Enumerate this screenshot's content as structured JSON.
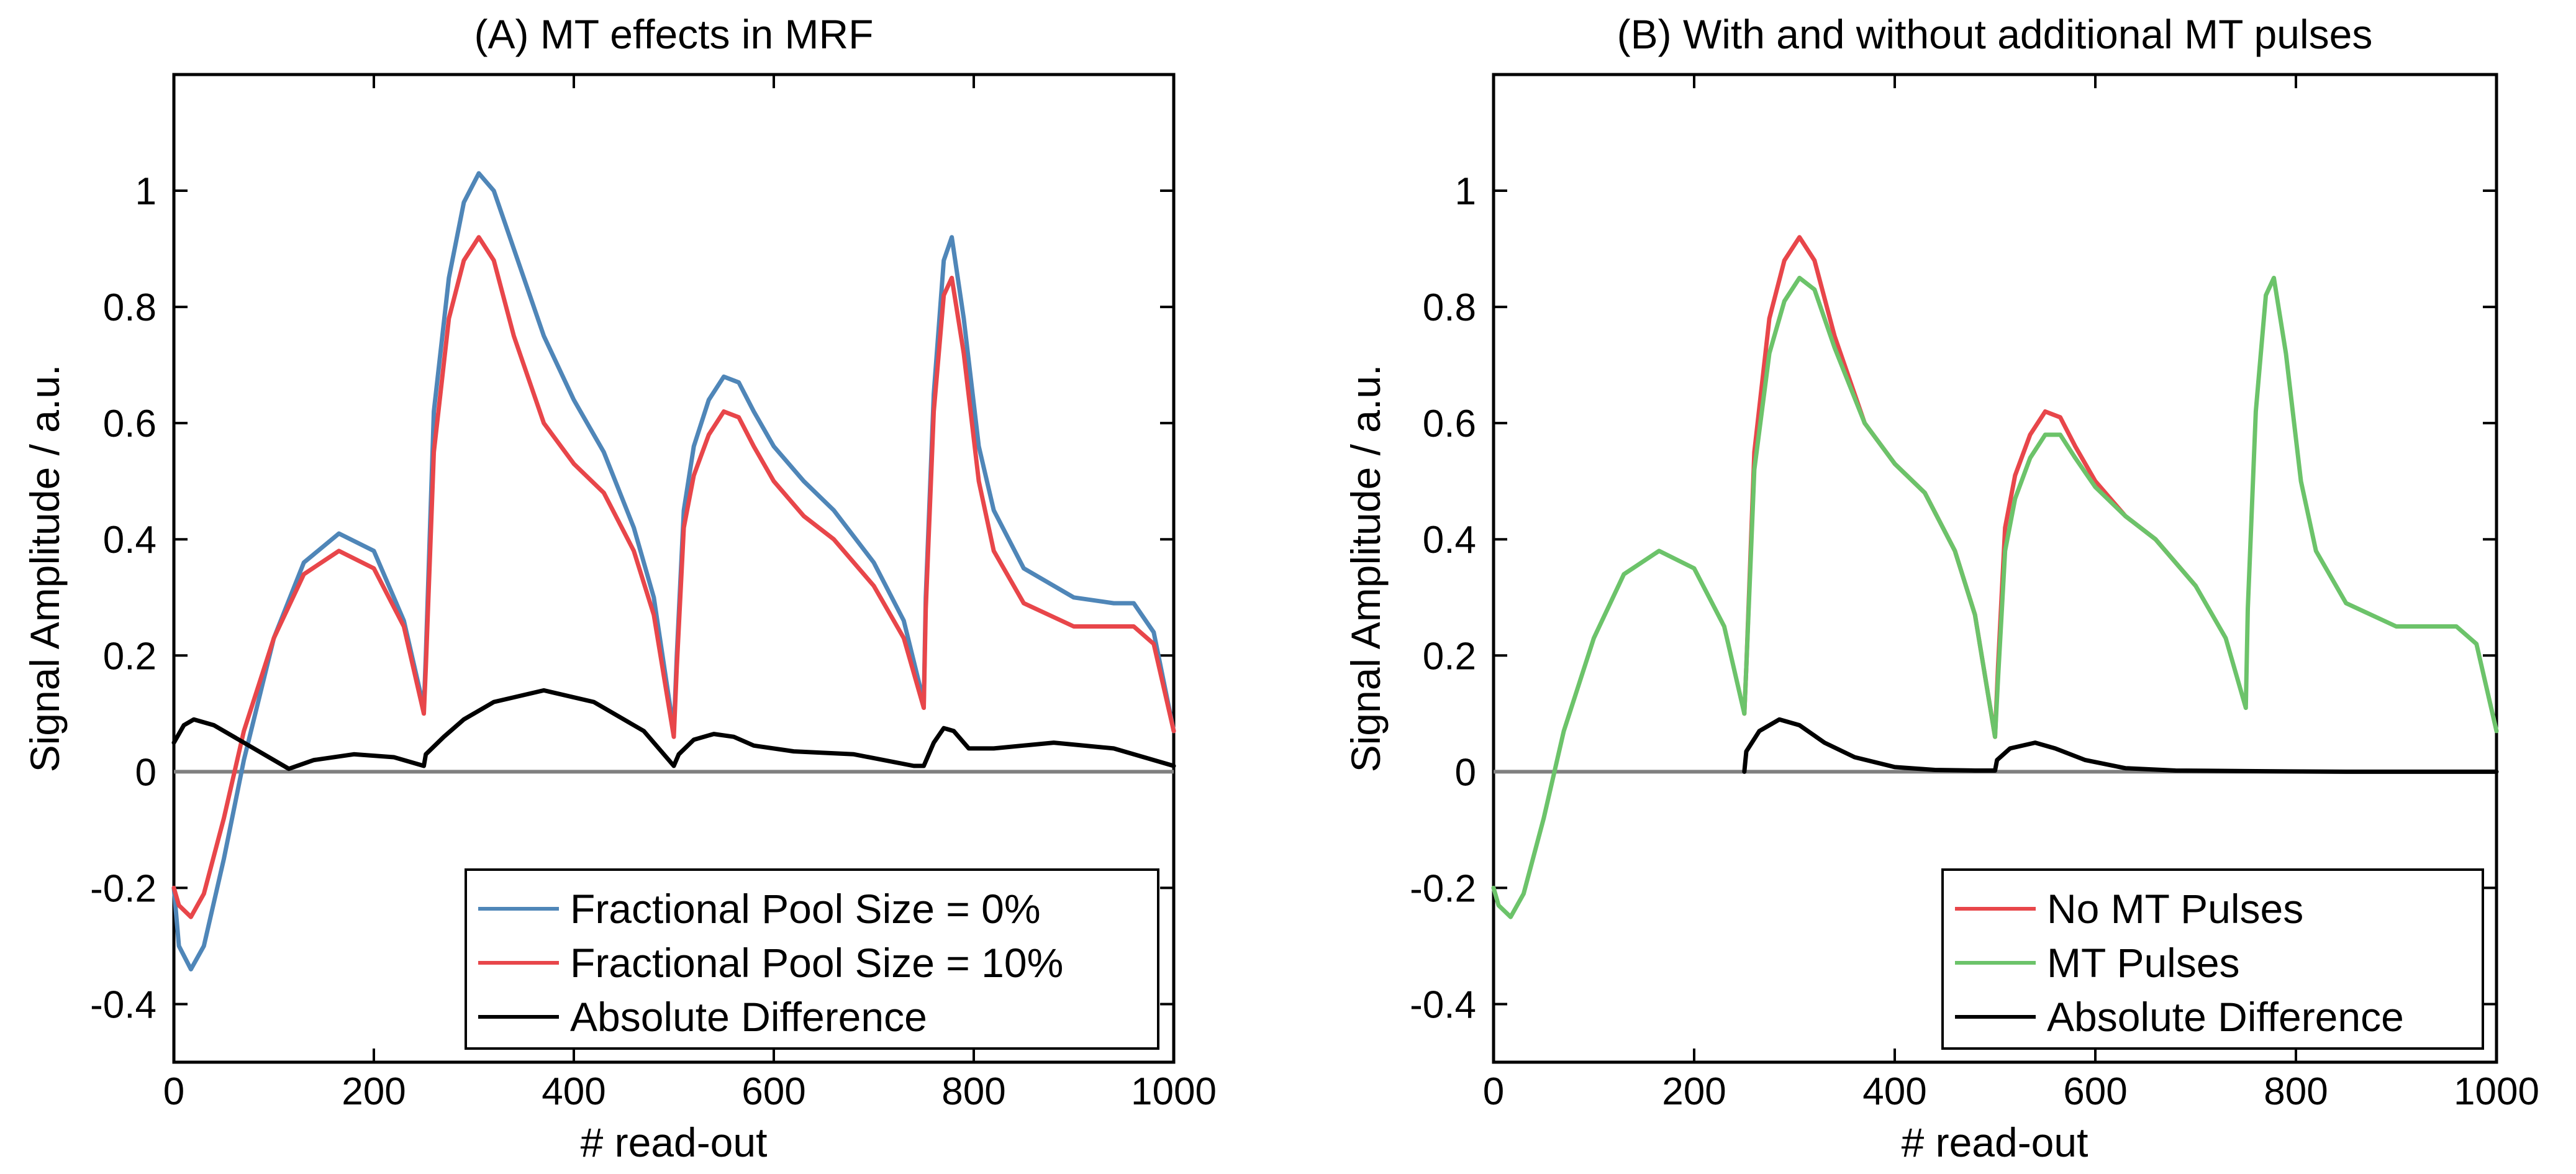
{
  "chart_data": [
    {
      "type": "line",
      "title": "(A) MT effects in MRF",
      "xlabel": "# read-out",
      "ylabel": "Signal Amplitude / a.u.",
      "xlim": [
        0,
        1000
      ],
      "ylim": [
        -0.5,
        1.2
      ],
      "xticks": [
        0,
        200,
        400,
        600,
        800,
        1000
      ],
      "yticks": [
        -0.4,
        -0.2,
        0,
        0.2,
        0.4,
        0.6,
        0.8,
        1
      ],
      "ytick_labels": [
        "-0.4",
        "-0.2",
        "0",
        "0.2",
        "0.4",
        "0.6",
        "0.8",
        "1"
      ],
      "grid": false,
      "zero_line": true,
      "legend": {
        "position": "bottom-right",
        "entries": [
          "Fractional Pool Size = 0%",
          "Fractional Pool Size = 10%",
          "Absolute Difference"
        ]
      },
      "series": [
        {
          "name": "Fractional Pool Size = 0%",
          "color": "#4f86b8",
          "x": [
            0,
            5,
            17,
            30,
            50,
            70,
            100,
            130,
            165,
            200,
            230,
            250,
            252,
            260,
            275,
            290,
            305,
            320,
            340,
            370,
            400,
            430,
            460,
            480,
            500,
            503,
            510,
            520,
            535,
            550,
            565,
            580,
            600,
            630,
            660,
            700,
            730,
            750,
            752,
            760,
            770,
            778,
            790,
            805,
            820,
            850,
            900,
            940,
            960,
            980,
            1000
          ],
          "y": [
            -0.2,
            -0.3,
            -0.34,
            -0.3,
            -0.15,
            0.02,
            0.23,
            0.36,
            0.41,
            0.38,
            0.26,
            0.11,
            0.2,
            0.62,
            0.85,
            0.98,
            1.03,
            1.0,
            0.9,
            0.75,
            0.64,
            0.55,
            0.42,
            0.3,
            0.07,
            0.2,
            0.45,
            0.56,
            0.64,
            0.68,
            0.67,
            0.62,
            0.56,
            0.5,
            0.45,
            0.36,
            0.26,
            0.12,
            0.3,
            0.65,
            0.88,
            0.92,
            0.78,
            0.56,
            0.45,
            0.35,
            0.3,
            0.29,
            0.29,
            0.24,
            0.07
          ]
        },
        {
          "name": "Fractional Pool Size = 10%",
          "color": "#e8464a",
          "x": [
            0,
            5,
            17,
            30,
            50,
            70,
            100,
            130,
            165,
            200,
            230,
            250,
            252,
            260,
            275,
            290,
            305,
            320,
            340,
            370,
            400,
            430,
            460,
            480,
            500,
            503,
            510,
            520,
            535,
            550,
            565,
            580,
            600,
            630,
            660,
            700,
            730,
            750,
            752,
            760,
            770,
            778,
            790,
            805,
            820,
            850,
            900,
            940,
            960,
            980,
            1000
          ],
          "y": [
            -0.2,
            -0.23,
            -0.25,
            -0.21,
            -0.08,
            0.07,
            0.23,
            0.34,
            0.38,
            0.35,
            0.25,
            0.1,
            0.18,
            0.55,
            0.78,
            0.88,
            0.92,
            0.88,
            0.75,
            0.6,
            0.53,
            0.48,
            0.38,
            0.27,
            0.06,
            0.18,
            0.42,
            0.51,
            0.58,
            0.62,
            0.61,
            0.56,
            0.5,
            0.44,
            0.4,
            0.32,
            0.23,
            0.11,
            0.28,
            0.62,
            0.82,
            0.85,
            0.72,
            0.5,
            0.38,
            0.29,
            0.25,
            0.25,
            0.25,
            0.22,
            0.07
          ]
        },
        {
          "name": "Absolute Difference",
          "color": "#000000",
          "x": [
            0,
            10,
            20,
            40,
            60,
            90,
            115,
            140,
            180,
            220,
            250,
            252,
            270,
            290,
            320,
            370,
            420,
            470,
            500,
            505,
            520,
            540,
            560,
            580,
            620,
            680,
            740,
            750,
            760,
            770,
            780,
            795,
            820,
            880,
            940,
            1000
          ],
          "y": [
            0.05,
            0.08,
            0.09,
            0.08,
            0.06,
            0.03,
            0.005,
            0.02,
            0.03,
            0.025,
            0.01,
            0.03,
            0.06,
            0.09,
            0.12,
            0.14,
            0.12,
            0.07,
            0.01,
            0.03,
            0.055,
            0.065,
            0.06,
            0.045,
            0.035,
            0.03,
            0.01,
            0.01,
            0.05,
            0.075,
            0.07,
            0.04,
            0.04,
            0.05,
            0.04,
            0.01
          ]
        }
      ]
    },
    {
      "type": "line",
      "title": "(B) With and without additional MT pulses",
      "xlabel": "# read-out",
      "ylabel": "Signal Amplitude / a.u.",
      "xlim": [
        0,
        1000
      ],
      "ylim": [
        -0.5,
        1.2
      ],
      "xticks": [
        0,
        200,
        400,
        600,
        800,
        1000
      ],
      "yticks": [
        -0.4,
        -0.2,
        0,
        0.2,
        0.4,
        0.6,
        0.8,
        1
      ],
      "ytick_labels": [
        "-0.4",
        "-0.2",
        "0",
        "0.2",
        "0.4",
        "0.6",
        "0.8",
        "1"
      ],
      "grid": false,
      "zero_line": true,
      "legend": {
        "position": "bottom-right",
        "entries": [
          "No MT Pulses",
          "MT Pulses",
          "Absolute Difference"
        ]
      },
      "series": [
        {
          "name": "No MT Pulses",
          "color": "#e8464a",
          "x": [
            250,
            252,
            260,
            275,
            290,
            305,
            320,
            340,
            370,
            400,
            430,
            460,
            480,
            500,
            503,
            510,
            520,
            535,
            550,
            565,
            580,
            600,
            630,
            660,
            700
          ],
          "y": [
            0.1,
            0.18,
            0.55,
            0.78,
            0.88,
            0.92,
            0.88,
            0.75,
            0.6,
            0.53,
            0.48,
            0.38,
            0.27,
            0.06,
            0.18,
            0.42,
            0.51,
            0.58,
            0.62,
            0.61,
            0.56,
            0.5,
            0.44,
            0.4,
            0.32
          ]
        },
        {
          "name": "MT Pulses",
          "color": "#6cc36a",
          "x": [
            0,
            5,
            17,
            30,
            50,
            70,
            100,
            130,
            165,
            200,
            230,
            250,
            252,
            260,
            275,
            290,
            305,
            320,
            340,
            370,
            400,
            430,
            460,
            480,
            500,
            503,
            510,
            520,
            535,
            550,
            565,
            580,
            600,
            630,
            660,
            700,
            730,
            750,
            752,
            760,
            770,
            778,
            790,
            805,
            820,
            850,
            900,
            940,
            960,
            980,
            1000
          ],
          "y": [
            -0.2,
            -0.23,
            -0.25,
            -0.21,
            -0.08,
            0.07,
            0.23,
            0.34,
            0.38,
            0.35,
            0.25,
            0.1,
            0.18,
            0.52,
            0.72,
            0.81,
            0.85,
            0.83,
            0.73,
            0.6,
            0.53,
            0.48,
            0.38,
            0.27,
            0.06,
            0.16,
            0.38,
            0.47,
            0.54,
            0.58,
            0.58,
            0.54,
            0.49,
            0.44,
            0.4,
            0.32,
            0.23,
            0.11,
            0.28,
            0.62,
            0.82,
            0.85,
            0.72,
            0.5,
            0.38,
            0.29,
            0.25,
            0.25,
            0.25,
            0.22,
            0.07
          ]
        },
        {
          "name": "Absolute Difference",
          "color": "#000000",
          "x": [
            250,
            252,
            265,
            285,
            305,
            330,
            360,
            400,
            440,
            480,
            500,
            502,
            515,
            540,
            560,
            590,
            630,
            680,
            750,
            850,
            1000
          ],
          "y": [
            0,
            0.035,
            0.07,
            0.09,
            0.08,
            0.05,
            0.025,
            0.008,
            0.003,
            0.002,
            0.002,
            0.02,
            0.04,
            0.05,
            0.04,
            0.02,
            0.006,
            0.002,
            0.001,
            0.0,
            0.0
          ]
        }
      ]
    }
  ]
}
